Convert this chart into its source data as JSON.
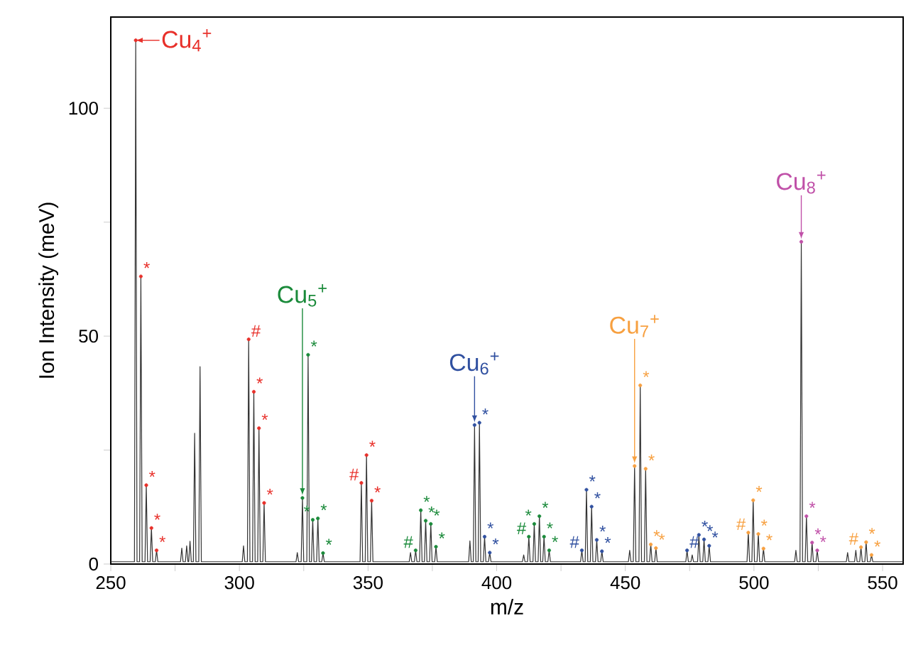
{
  "chart_data": {
    "type": "line",
    "xlabel": "m/z",
    "ylabel": "Ion Intensity (meV)",
    "xlim": [
      250,
      558
    ],
    "ylim": [
      0,
      120
    ],
    "xticks": [
      250,
      {
        "value": 275,
        "label": null
      },
      300,
      {
        "value": 325,
        "label": null
      },
      350,
      {
        "value": 375,
        "label": null
      },
      400,
      {
        "value": 425,
        "label": null
      },
      450,
      {
        "value": 475,
        "label": null
      },
      500,
      {
        "value": 525,
        "label": null
      },
      550
    ],
    "yticks": [
      0,
      {
        "value": 25,
        "label": null
      },
      50,
      {
        "value": 75,
        "label": null
      },
      100
    ],
    "grid": false,
    "series": [
      {
        "color": "#333333",
        "x": [
          250,
          259.2,
          259.7,
          260.2,
          261.2,
          261.7,
          262.2,
          263.3,
          263.8,
          264.3,
          265.3,
          265.8,
          266.3,
          267.3,
          267.8,
          268.3,
          277.1,
          277.6,
          278.1,
          279.0,
          279.5,
          280.0,
          280.3,
          280.8,
          281.3,
          282.1,
          282.6,
          283.1,
          284.2,
          284.7,
          285.2,
          301.1,
          301.6,
          302.1,
          303.1,
          303.6,
          304.1,
          305.1,
          305.6,
          306.1,
          307.1,
          307.6,
          308.1,
          309.1,
          309.6,
          310.1,
          322.0,
          322.5,
          323.0,
          324.0,
          324.5,
          325.0,
          326.2,
          326.7,
          327.2,
          328.0,
          328.5,
          329.0,
          330.0,
          330.5,
          331.0,
          332.0,
          332.5,
          333.0,
          346.9,
          347.4,
          347.9,
          348.9,
          349.4,
          349.9,
          350.9,
          351.4,
          351.9,
          366.0,
          366.5,
          367.0,
          368.0,
          368.5,
          369.0,
          370.0,
          370.5,
          371.0,
          371.9,
          372.4,
          372.9,
          373.9,
          374.4,
          374.9,
          375.9,
          376.4,
          376.9,
          389.1,
          389.6,
          390.1,
          390.9,
          391.4,
          391.9,
          392.8,
          393.3,
          393.8,
          394.8,
          395.3,
          395.8,
          396.8,
          397.3,
          397.8,
          410.0,
          410.5,
          411.0,
          412.0,
          412.5,
          413.0,
          414.1,
          414.6,
          415.1,
          416.1,
          416.6,
          417.1,
          417.9,
          418.4,
          418.9,
          419.9,
          420.4,
          420.9,
          432.6,
          433.1,
          433.6,
          434.4,
          434.9,
          435.4,
          436.4,
          436.9,
          437.4,
          438.4,
          438.9,
          439.4,
          440.4,
          440.9,
          441.4,
          451.2,
          451.7,
          452.2,
          453.1,
          453.6,
          454.1,
          455.3,
          455.8,
          456.3,
          457.4,
          457.9,
          458.4,
          459.4,
          459.9,
          460.4,
          461.4,
          461.9,
          462.4,
          473.5,
          474.0,
          474.5,
          475.5,
          476.0,
          476.5,
          478.1,
          478.6,
          479.1,
          480.1,
          480.6,
          481.1,
          482.1,
          482.6,
          483.1,
          497.3,
          497.8,
          498.3,
          499.2,
          499.7,
          500.2,
          501.2,
          501.7,
          502.2,
          503.2,
          503.7,
          504.2,
          515.8,
          516.3,
          516.8,
          517.9,
          518.4,
          518.9,
          519.9,
          520.4,
          520.9,
          522.1,
          522.6,
          523.1,
          524.1,
          524.6,
          525.1,
          535.9,
          536.4,
          536.9,
          539.1,
          539.6,
          540.1,
          541.1,
          541.6,
          542.1,
          543.1,
          543.6,
          544.1,
          545.2,
          545.7,
          546.2,
          558
        ],
        "values": [
          0.5,
          0.5,
          114.9,
          0.5,
          0.5,
          63.1,
          0.5,
          0.5,
          17.3,
          0.5,
          0.5,
          7.9,
          0.5,
          0.5,
          3,
          0.5,
          0.5,
          3.5,
          0.5,
          0.5,
          4,
          0.5,
          0.5,
          5,
          0.5,
          0.5,
          28.7,
          0.5,
          0.5,
          43.3,
          0.5,
          0.5,
          4,
          0.5,
          0.5,
          49.3,
          0.5,
          0.5,
          37.8,
          0.5,
          0.5,
          29.8,
          0.5,
          0.5,
          13.4,
          0.5,
          0.5,
          2.5,
          0.5,
          0.5,
          14.5,
          0.5,
          0.5,
          45.9,
          0.5,
          0.5,
          9.7,
          0.5,
          0.5,
          10,
          0.5,
          0.5,
          2.4,
          0.5,
          0.5,
          17.8,
          0.5,
          0.5,
          23.9,
          0.5,
          0.5,
          13.9,
          0.5,
          0.5,
          2.5,
          0.5,
          0.5,
          3,
          0.5,
          0.5,
          11.8,
          0.5,
          0.5,
          9.5,
          0.5,
          0.5,
          8.8,
          0.5,
          0.5,
          3.8,
          0.5,
          0.5,
          5.1,
          0.5,
          0.5,
          30.5,
          0.5,
          0.5,
          31,
          0.5,
          0.5,
          6,
          0.5,
          0.5,
          2.5,
          0.5,
          0.5,
          2,
          0.5,
          0.5,
          6,
          0.5,
          0.5,
          8.8,
          0.5,
          0.5,
          10.5,
          0.5,
          0.5,
          6,
          0.5,
          0.5,
          3,
          0.5,
          0.5,
          3,
          0.5,
          0.5,
          16.3,
          0.5,
          0.5,
          12.6,
          0.5,
          0.5,
          5.3,
          0.5,
          0.5,
          2.8,
          0.5,
          0.5,
          3,
          0.5,
          0.5,
          21.5,
          0.5,
          0.5,
          39.2,
          0.5,
          0.5,
          20.9,
          0.5,
          0.5,
          4.3,
          0.5,
          0.5,
          3.5,
          0.5,
          0.5,
          3,
          0.5,
          0.5,
          2,
          0.5,
          0.5,
          6.4,
          0.5,
          0.5,
          5.4,
          0.5,
          0.5,
          4,
          0.5,
          0.5,
          6.9,
          0.5,
          0.5,
          14,
          0.5,
          0.5,
          6.6,
          0.5,
          0.5,
          3.4,
          0.5,
          0.5,
          3,
          0.5,
          0.5,
          70.7,
          0.5,
          0.5,
          10.5,
          0.5,
          0.5,
          4.7,
          0.5,
          0.5,
          3,
          0.5,
          0.5,
          2.5,
          0.5,
          0.5,
          3,
          0.5,
          0.5,
          3.7,
          0.5,
          0.5,
          4.8,
          0.5,
          0.5,
          2,
          0.5,
          0.5
        ]
      },
      {
        "type": "scatter",
        "marker": "circle",
        "name": "Cu$_{4}$$^{+}$",
        "color": "#e8302a",
        "x": [
          259.7,
          261.7,
          263.8,
          265.8,
          267.8,
          303.6,
          305.6,
          307.6,
          309.6,
          347.4,
          349.4,
          351.4
        ],
        "values": [
          114.9,
          63.1,
          17.3,
          7.9,
          3,
          49.3,
          37.8,
          29.8,
          13.4,
          17.8,
          23.9,
          13.9
        ],
        "value_labels": [
          null,
          "*",
          "*",
          "*",
          "*",
          "#",
          "*",
          "*",
          "*",
          "#",
          "*",
          "*"
        ]
      },
      {
        "type": "scatter",
        "marker": "circle",
        "name": "Cu$_{5}$$^{+}$",
        "color": "#1a8a3a",
        "x": [
          324.5,
          326.7,
          328.5,
          330.5,
          332.5,
          368.5,
          370.5,
          372.4,
          374.4,
          376.4,
          412.5,
          414.6,
          416.6,
          418.4,
          420.4
        ],
        "values": [
          14.5,
          45.9,
          9.7,
          10,
          2.4,
          3,
          11.8,
          9.5,
          8.8,
          3.8,
          6,
          8.8,
          10.5,
          6,
          3
        ],
        "value_labels": [
          null,
          "*",
          "*",
          "*",
          "*",
          "#",
          "*",
          "*",
          "*",
          "*",
          "#",
          "*",
          "*",
          "*",
          "*"
        ]
      },
      {
        "type": "scatter",
        "marker": "circle",
        "name": "Cu$_{6}$$^{+}$",
        "color": "#3050a0",
        "x": [
          391.4,
          393.3,
          395.3,
          397.3,
          433.1,
          434.9,
          436.9,
          438.9,
          440.9,
          474,
          478.6,
          480.6,
          482.6
        ],
        "values": [
          30.5,
          31,
          6,
          2.5,
          3,
          16.3,
          12.6,
          5.3,
          2.8,
          3,
          6.4,
          5.4,
          4
        ],
        "value_labels": [
          null,
          "*",
          "*",
          "*",
          "#",
          "*",
          "*",
          "*",
          "*",
          "#",
          "*",
          "*",
          "*"
        ]
      },
      {
        "type": "scatter",
        "marker": "circle",
        "name": "Cu$_{7}$$^{+}$",
        "color": "#f7a040",
        "x": [
          453.6,
          455.8,
          457.9,
          459.9,
          461.9,
          497.8,
          499.7,
          501.7,
          503.7,
          541.6,
          543.6,
          545.7
        ],
        "values": [
          21.5,
          39.2,
          20.9,
          4.3,
          3.5,
          6.9,
          14,
          6.6,
          3.4,
          3.7,
          4.8,
          2
        ],
        "value_labels": [
          null,
          "*",
          "*",
          "*",
          "*",
          "#",
          "*",
          "*",
          "*",
          "#",
          "*",
          "*"
        ]
      },
      {
        "type": "scatter",
        "marker": "circle",
        "name": "Cu$_{8}$$^{+}$",
        "color": "#c050a8",
        "x": [
          518.4,
          520.4,
          522.6,
          524.6
        ],
        "values": [
          70.7,
          10.5,
          4.7,
          3
        ],
        "value_labels": [
          null,
          "*",
          "*",
          "*"
        ]
      }
    ]
  }
}
